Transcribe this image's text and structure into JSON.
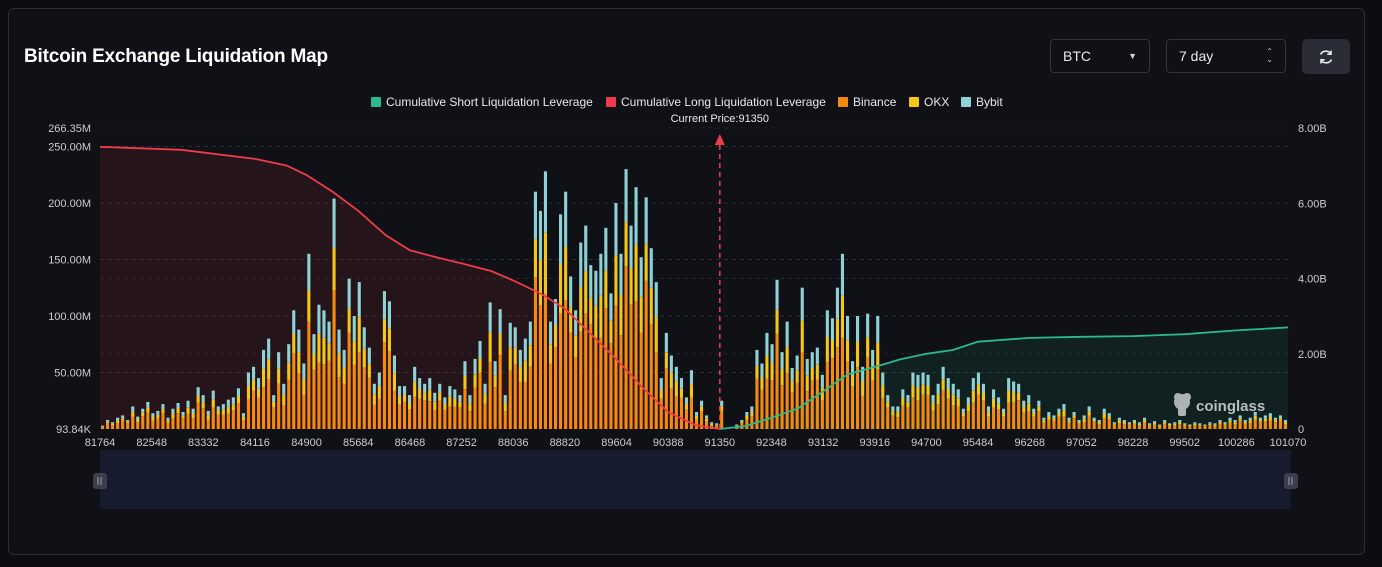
{
  "header": {
    "title": "Bitcoin Exchange Liquidation Map",
    "coin_select": "BTC",
    "range_select": "7 day"
  },
  "watermark": "coinglass",
  "colors": {
    "short_cum": "#2bb88f",
    "long_cum": "#ef3b4e",
    "binance": "#f58a10",
    "okx": "#f5c518",
    "bybit": "#8ed2d6"
  },
  "chart_data": {
    "type": "bar",
    "current_price_label": "Current Price:91350",
    "current_price": 91350,
    "legend": [
      "Cumulative Short Liquidation Leverage",
      "Cumulative Long Liquidation Leverage",
      "Binance",
      "OKX",
      "Bybit"
    ],
    "x_tick_labels": [
      "81764",
      "82548",
      "83332",
      "84116",
      "84900",
      "85684",
      "86468",
      "87252",
      "88036",
      "88820",
      "89604",
      "90388",
      "91350",
      "92348",
      "93132",
      "93916",
      "94700",
      "95484",
      "96268",
      "97052",
      "98228",
      "99502",
      "100286",
      "101070"
    ],
    "y_left_ticks": [
      "93.84K",
      "50.00M",
      "100.00M",
      "150.00M",
      "200.00M",
      "250.00M",
      "266.35M"
    ],
    "y_right_ticks": [
      "0",
      "2.00B",
      "4.00B",
      "6.00B",
      "8.00B"
    ],
    "ylim_left": [
      0,
      266.35
    ],
    "ylim_right": [
      0,
      8.0
    ],
    "bar_totals_M": [
      3,
      8,
      6,
      10,
      12,
      8,
      20,
      11,
      18,
      24,
      14,
      16,
      22,
      10,
      18,
      23,
      15,
      25,
      18,
      37,
      30,
      16,
      34,
      20,
      22,
      26,
      28,
      36,
      14,
      50,
      55,
      45,
      70,
      80,
      30,
      68,
      40,
      75,
      105,
      88,
      58,
      155,
      84,
      110,
      105,
      95,
      204,
      88,
      70,
      133,
      100,
      130,
      90,
      72,
      40,
      50,
      122,
      113,
      65,
      38,
      38,
      30,
      55,
      45,
      40,
      45,
      32,
      40,
      28,
      38,
      35,
      30,
      60,
      30,
      62,
      78,
      40,
      112,
      60,
      106,
      30,
      94,
      90,
      70,
      80,
      95,
      210,
      193,
      228,
      95,
      115,
      190,
      210,
      135,
      105,
      165,
      180,
      145,
      140,
      155,
      178,
      120,
      200,
      155,
      230,
      180,
      214,
      152,
      205,
      160,
      130,
      45,
      85,
      65,
      55,
      45,
      28,
      52,
      15,
      25,
      12,
      6,
      5,
      25,
      0,
      0,
      4,
      8,
      15,
      20,
      70,
      58,
      85,
      75,
      132,
      68,
      95,
      54,
      65,
      125,
      62,
      68,
      72,
      48,
      105,
      98,
      125,
      155,
      100,
      60,
      100,
      55,
      102,
      70,
      100,
      50,
      30,
      20,
      20,
      35,
      30,
      50,
      48,
      50,
      48,
      30,
      40,
      55,
      45,
      40,
      35,
      18,
      28,
      45,
      50,
      40,
      20,
      35,
      28,
      18,
      45,
      42,
      40,
      25,
      30,
      18,
      25,
      10,
      15,
      12,
      18,
      22,
      10,
      15,
      8,
      12,
      20,
      10,
      8,
      18,
      14,
      6,
      10,
      8,
      6,
      8,
      6,
      10,
      5,
      7,
      4,
      8,
      5,
      6,
      8,
      5,
      4,
      6,
      5,
      4,
      6,
      5,
      8,
      6,
      10,
      8,
      12,
      8,
      10,
      15,
      10,
      12,
      14,
      10,
      12,
      8
    ],
    "cumulative_long_B": [
      [
        81764,
        7.5
      ],
      [
        83000,
        7.42
      ],
      [
        84116,
        7.18
      ],
      [
        84600,
        7.0
      ],
      [
        84900,
        6.75
      ],
      [
        85300,
        6.3
      ],
      [
        85684,
        5.8
      ],
      [
        86100,
        5.15
      ],
      [
        86468,
        4.75
      ],
      [
        86900,
        4.55
      ],
      [
        87252,
        4.4
      ],
      [
        87700,
        4.2
      ],
      [
        88036,
        3.95
      ],
      [
        88450,
        3.6
      ],
      [
        88820,
        3.2
      ],
      [
        89200,
        2.55
      ],
      [
        89604,
        1.85
      ],
      [
        90000,
        1.1
      ],
      [
        90388,
        0.45
      ],
      [
        90900,
        0.1
      ],
      [
        91350,
        0.0
      ]
    ],
    "cumulative_short_B": [
      [
        91350,
        0.0
      ],
      [
        91850,
        0.08
      ],
      [
        92348,
        0.3
      ],
      [
        92750,
        0.55
      ],
      [
        93132,
        1.0
      ],
      [
        93500,
        1.45
      ],
      [
        93916,
        1.65
      ],
      [
        94300,
        1.85
      ],
      [
        94700,
        2.0
      ],
      [
        95100,
        2.1
      ],
      [
        95484,
        2.32
      ],
      [
        96268,
        2.42
      ],
      [
        97052,
        2.45
      ],
      [
        98228,
        2.47
      ],
      [
        99502,
        2.52
      ],
      [
        100286,
        2.62
      ],
      [
        101070,
        2.7
      ]
    ]
  }
}
